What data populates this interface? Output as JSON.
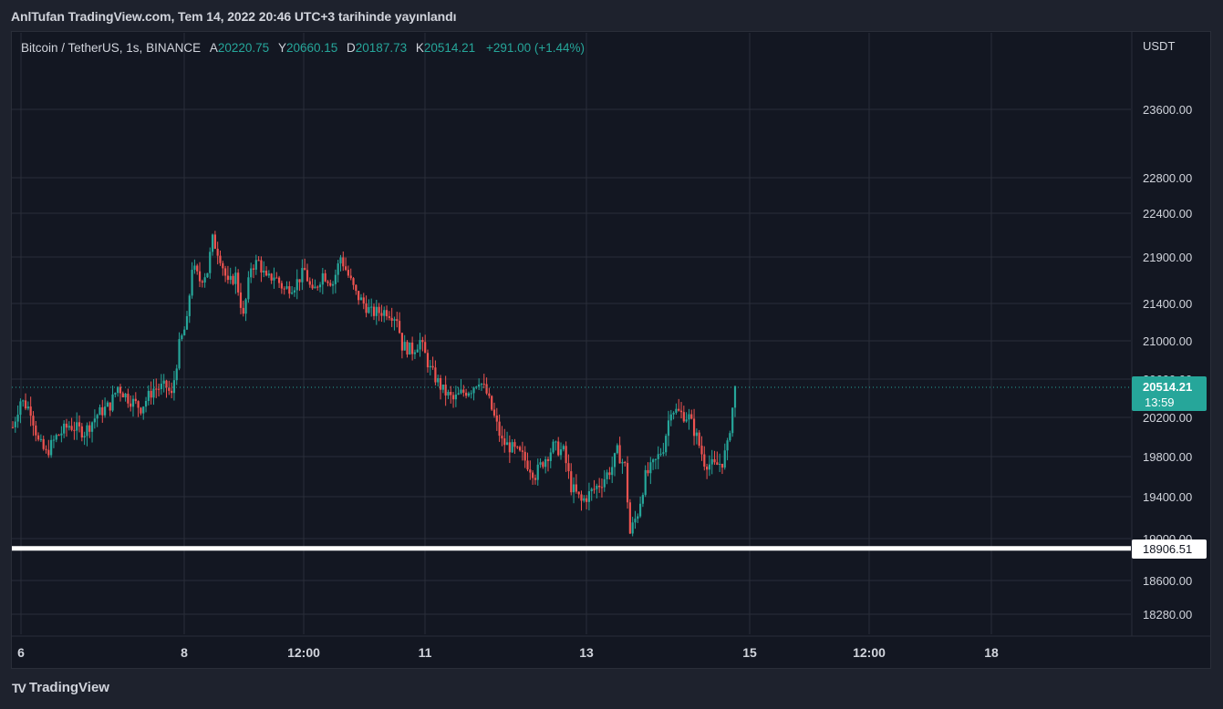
{
  "header": {
    "published": "AnlTufan TradingView.com, Tem 14, 2022 20:46 UTC+3 tarihinde yayınlandı"
  },
  "legend": {
    "symbol": "Bitcoin / TetherUS, 1s, BINANCE",
    "open_label": "A",
    "open": "20220.75",
    "high_label": "Y",
    "high": "20660.15",
    "low_label": "D",
    "low": "20187.73",
    "close_label": "K",
    "close": "20514.21",
    "change": "+291.00 (+1.44%)"
  },
  "price_axis": {
    "currency": "USDT",
    "ticks": [
      "23600.00",
      "22800.00",
      "22400.00",
      "21900.00",
      "21400.00",
      "21000.00",
      "20600.00",
      "20200.00",
      "19800.00",
      "19400.00",
      "19000.00",
      "18600.00",
      "18280.00"
    ],
    "last_price_label": "20514.21",
    "countdown": "13:59",
    "support_label": "18906.51"
  },
  "time_axis": {
    "ticks": [
      "6",
      "8",
      "12:00",
      "11",
      "13",
      "15",
      "12:00",
      "18"
    ]
  },
  "brand": {
    "name": "TradingView"
  },
  "colors": {
    "up": "#26a69a",
    "down": "#ef5350",
    "background": "#131722",
    "grid": "#2a2e39",
    "support_line": "#ffffff"
  },
  "chart_data": {
    "type": "candlestick",
    "symbol": "BTCUSDT",
    "timeframe": "1h",
    "ylim": [
      18100,
      24100
    ],
    "last_price": 20514.21,
    "support_level": 18906.51,
    "grid": true,
    "price_waypoints": [
      [
        0,
        20100
      ],
      [
        3,
        20380
      ],
      [
        7,
        20280
      ],
      [
        10,
        19950
      ],
      [
        13,
        19830
      ],
      [
        17,
        20000
      ],
      [
        22,
        20120
      ],
      [
        28,
        20050
      ],
      [
        33,
        20230
      ],
      [
        38,
        20330
      ],
      [
        41,
        20520
      ],
      [
        45,
        20400
      ],
      [
        50,
        20300
      ],
      [
        55,
        20500
      ],
      [
        60,
        20520
      ],
      [
        62,
        20420
      ],
      [
        65,
        20950
      ],
      [
        68,
        21200
      ],
      [
        70,
        21800
      ],
      [
        73,
        21650
      ],
      [
        76,
        21750
      ],
      [
        78,
        22100
      ],
      [
        81,
        21900
      ],
      [
        84,
        21600
      ],
      [
        87,
        21700
      ],
      [
        90,
        21250
      ],
      [
        93,
        21800
      ],
      [
        96,
        21850
      ],
      [
        99,
        21650
      ],
      [
        102,
        21700
      ],
      [
        106,
        21550
      ],
      [
        110,
        21600
      ],
      [
        114,
        21750
      ],
      [
        117,
        21500
      ],
      [
        121,
        21720
      ],
      [
        125,
        21620
      ],
      [
        128,
        21900
      ],
      [
        131,
        21700
      ],
      [
        134,
        21500
      ],
      [
        137,
        21400
      ],
      [
        140,
        21300
      ],
      [
        146,
        21320
      ],
      [
        150,
        21250
      ],
      [
        152,
        20950
      ],
      [
        156,
        20900
      ],
      [
        159,
        21000
      ],
      [
        163,
        20700
      ],
      [
        168,
        20480
      ],
      [
        172,
        20380
      ],
      [
        175,
        20450
      ],
      [
        179,
        20500
      ],
      [
        182,
        20600
      ],
      [
        185,
        20450
      ],
      [
        188,
        20200
      ],
      [
        191,
        19950
      ],
      [
        194,
        19900
      ],
      [
        199,
        19800
      ],
      [
        204,
        19620
      ],
      [
        207,
        19750
      ],
      [
        211,
        19900
      ],
      [
        215,
        19850
      ],
      [
        218,
        19500
      ],
      [
        222,
        19350
      ],
      [
        226,
        19450
      ],
      [
        230,
        19550
      ],
      [
        234,
        19700
      ],
      [
        236,
        19850
      ],
      [
        239,
        19700
      ],
      [
        241,
        19050
      ],
      [
        244,
        19250
      ],
      [
        247,
        19600
      ],
      [
        251,
        19750
      ],
      [
        254,
        19900
      ],
      [
        257,
        20300
      ],
      [
        260,
        20250
      ],
      [
        264,
        20200
      ],
      [
        267,
        20000
      ],
      [
        270,
        19750
      ],
      [
        274,
        19700
      ],
      [
        277,
        19750
      ],
      [
        279,
        19900
      ],
      [
        282,
        20500
      ]
    ],
    "x_ticks": [
      "6",
      "8",
      "12:00",
      "11",
      "13",
      "15",
      "12:00",
      "18"
    ]
  }
}
